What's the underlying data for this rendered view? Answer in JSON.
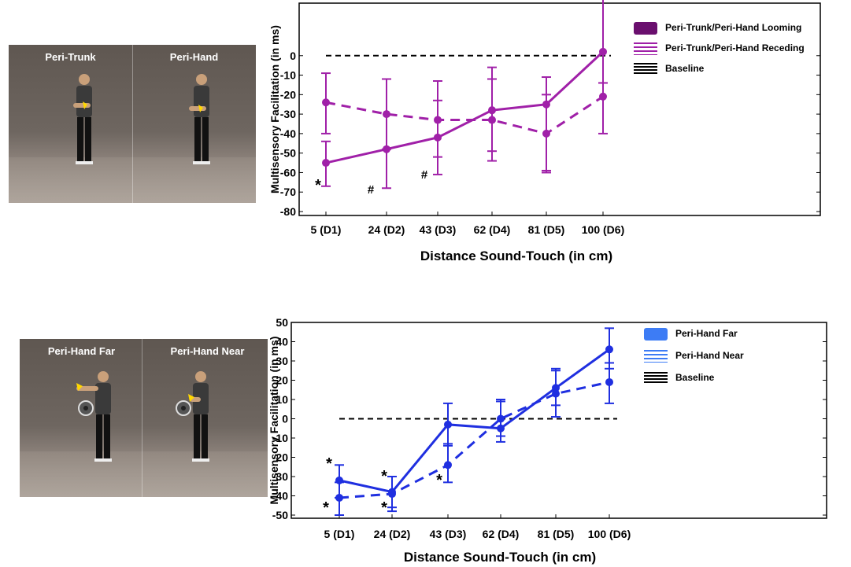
{
  "photos": {
    "top": {
      "left_label": "Peri-Trunk",
      "right_label": "Peri-Hand"
    },
    "bottom": {
      "left_label": "Peri-Hand Far",
      "right_label": "Peri-Hand Near"
    }
  },
  "colors": {
    "top_series": "#a020a8",
    "bottom_series": "#1f2fe0",
    "baseline": "#000000"
  },
  "chart_data": [
    {
      "type": "line",
      "title": "",
      "xlabel": "Distance Sound-Touch (in cm)",
      "ylabel": "Multisensory Facilitation (in ms)",
      "categories": [
        "5 (D1)",
        "24 (D2)",
        "43 (D3)",
        "62 (D4)",
        "81 (D5)",
        "100 (D6)"
      ],
      "ylim": [
        -80,
        10
      ],
      "yticks": [
        -80,
        -70,
        -60,
        -50,
        -40,
        -30,
        -20,
        -10,
        0
      ],
      "baseline": 0,
      "legend_position": "right",
      "legend": [
        "Peri-Trunk/Peri-Hand Looming",
        "Peri-Trunk/Peri-Hand Receding",
        "Baseline"
      ],
      "series": [
        {
          "name": "Peri-Trunk/Peri-Hand Looming",
          "style": "solid",
          "values": [
            -55,
            -48,
            -42,
            -28,
            -25,
            2
          ],
          "err_low": [
            -67,
            -68,
            -61,
            -49,
            -59,
            -14
          ],
          "err_high": [
            -44,
            -12,
            -13,
            -6,
            -11,
            30
          ]
        },
        {
          "name": "Peri-Trunk/Peri-Hand Receding",
          "style": "dashed",
          "values": [
            -24,
            -30,
            -33,
            -33,
            -40,
            -21
          ],
          "err_low": [
            -40,
            -48,
            -52,
            -54,
            -60,
            -40
          ],
          "err_high": [
            -9,
            -12,
            -23,
            -12,
            -20,
            -14
          ]
        }
      ],
      "annotations": [
        {
          "x": "5 (D1)",
          "text": "*"
        },
        {
          "x": "24 (D2)",
          "text": "#"
        },
        {
          "x": "43 (D3)",
          "text": "#"
        }
      ]
    },
    {
      "type": "line",
      "title": "",
      "xlabel": "Distance Sound-Touch (in cm)",
      "ylabel": "Multisensory Facilitation (in ms)",
      "categories": [
        "5 (D1)",
        "24 (D2)",
        "43 (D3)",
        "62 (D4)",
        "81 (D5)",
        "100 (D6)"
      ],
      "ylim": [
        -50,
        50
      ],
      "yticks": [
        -50,
        -40,
        -30,
        -20,
        -10,
        0,
        10,
        20,
        30,
        40,
        50
      ],
      "baseline": 0,
      "legend_position": "right",
      "legend": [
        "Peri-Hand Far",
        "Peri-Hand Near",
        "Baseline"
      ],
      "series": [
        {
          "name": "Peri-Hand Far",
          "style": "solid",
          "values": [
            -32,
            -38,
            -3,
            -5,
            16,
            36
          ],
          "err_low": [
            -41,
            -46,
            -14,
            -12,
            7,
            26
          ],
          "err_high": [
            -24,
            -30,
            8,
            10,
            26,
            47
          ]
        },
        {
          "name": "Peri-Hand Near",
          "style": "dashed",
          "values": [
            -41,
            -39,
            -24,
            0,
            13,
            19
          ],
          "err_low": [
            -50,
            -48,
            -33,
            -9,
            1,
            8
          ],
          "err_high": [
            -33,
            -30,
            -13,
            9,
            25,
            29
          ]
        }
      ],
      "annotations": [
        {
          "x": "5 (D1)",
          "text": "*"
        },
        {
          "x": "5 (D1)",
          "text": "*"
        },
        {
          "x": "24 (D2)",
          "text": "*"
        },
        {
          "x": "24 (D2)",
          "text": "*"
        },
        {
          "x": "43 (D3)",
          "text": "*"
        }
      ]
    }
  ]
}
